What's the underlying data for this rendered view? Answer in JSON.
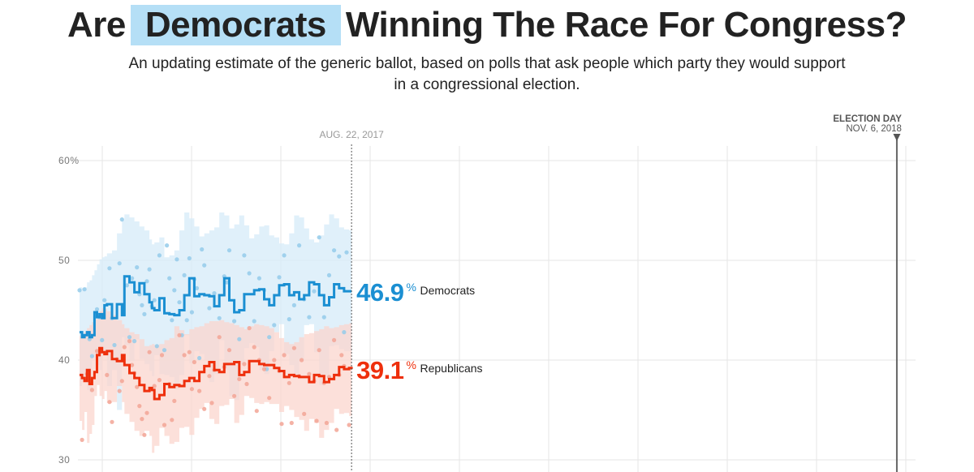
{
  "header": {
    "title_before": "Are",
    "title_highlight": "Democrats",
    "title_after": "Winning The Race For Congress?",
    "subtitle": "An updating estimate of the generic ballot, based on polls that ask people which party they would support in a congressional election."
  },
  "colors": {
    "democrat": "#1b8fd2",
    "democrat_band": "#d6ebf8",
    "democrat_dot": "#94cbea",
    "republican": "#ee2f0c",
    "republican_band": "#fbd6cd",
    "republican_dot": "#f2a595",
    "highlight": "#b5dff6",
    "grid": "#e6e6e6"
  },
  "chart_data": {
    "type": "line",
    "title": "Are Democrats Winning The Race For Congress?",
    "xlabel": "",
    "ylabel": "",
    "ylim": [
      30,
      60
    ],
    "y_ticks": [
      {
        "value": 60,
        "label": "60%"
      },
      {
        "value": 50,
        "label": "50"
      },
      {
        "value": 40,
        "label": "40"
      },
      {
        "value": 30,
        "label": "30"
      }
    ],
    "x_range_days": [
      0,
      670
    ],
    "current_day": 218,
    "election_day": 655,
    "markers": [
      {
        "name": "current",
        "label": "AUG. 22, 2017",
        "day": 218
      },
      {
        "name": "election",
        "label": "ELECTION DAY",
        "sublabel": "NOV. 6, 2018",
        "day": 655
      }
    ],
    "series": [
      {
        "name": "Democrats",
        "label_value": "46.9",
        "label_unit": "%",
        "x": [
          0,
          2,
          4,
          6,
          8,
          10,
          12,
          14,
          16,
          18,
          20,
          22,
          26,
          30,
          34,
          36,
          40,
          44,
          48,
          52,
          56,
          58,
          60,
          64,
          68,
          72,
          76,
          80,
          84,
          88,
          92,
          96,
          100,
          104,
          108,
          112,
          116,
          120,
          124,
          128,
          132,
          136,
          140,
          144,
          148,
          152,
          156,
          160,
          164,
          168,
          172,
          176,
          180,
          184,
          188,
          192,
          196,
          200,
          204,
          208,
          212,
          216,
          218
        ],
        "values": [
          42.8,
          42.3,
          42.5,
          42.8,
          42.3,
          42.5,
          44.8,
          44.3,
          44.6,
          44.2,
          45.5,
          45.6,
          44.2,
          45.6,
          44.5,
          48.4,
          47.8,
          46.8,
          47.7,
          46.6,
          45.8,
          45.2,
          45.0,
          46.2,
          44.7,
          44.6,
          44.5,
          45.0,
          46.5,
          48.2,
          46.4,
          46.6,
          46.5,
          46.4,
          45.4,
          46.5,
          48.2,
          46.0,
          44.8,
          45.0,
          46.6,
          46.6,
          47.0,
          47.1,
          46.1,
          45.5,
          46.5,
          47.5,
          47.6,
          46.5,
          46.8,
          46.1,
          46.5,
          47.8,
          47.6,
          46.5,
          45.5,
          46.3,
          47.6,
          47.2,
          46.9,
          46.9,
          46.9
        ],
        "upper": [
          47.3,
          47.2,
          47.3,
          47.8,
          48.0,
          48.5,
          49.0,
          49.6,
          50.1,
          50.3,
          50.4,
          50.7,
          51.0,
          52.7,
          54.0,
          54.6,
          54.3,
          53.9,
          53.4,
          53.0,
          52.1,
          51.6,
          51.8,
          52.3,
          50.3,
          50.5,
          51.0,
          53.0,
          54.8,
          54.2,
          53.4,
          52.4,
          52.7,
          53.0,
          53.3,
          54.8,
          54.5,
          53.2,
          53.6,
          54.5,
          53.5,
          52.2,
          52.6,
          53.4,
          53.5,
          52.5,
          52.3,
          51.7,
          51.6,
          52.7,
          54.5,
          54.3,
          53.2,
          52.1,
          51.8,
          52.5,
          53.6,
          54.6,
          54.2,
          53.3,
          53.1,
          53.0,
          52.9
        ],
        "lower": [
          38.1,
          37.4,
          37.9,
          38.0,
          37.0,
          36.8,
          40.5,
          39.0,
          39.5,
          39.0,
          40.5,
          40.7,
          37.4,
          39.0,
          35.0,
          42.3,
          41.5,
          39.9,
          42.1,
          40.1,
          39.6,
          38.9,
          38.4,
          40.5,
          38.6,
          38.5,
          38.3,
          37.1,
          38.5,
          42.5,
          39.7,
          40.9,
          40.6,
          40.0,
          37.8,
          38.6,
          42.0,
          39.0,
          36.4,
          36.0,
          39.6,
          41.2,
          41.7,
          41.3,
          39.0,
          38.6,
          40.9,
          42.8,
          43.6,
          40.6,
          39.5,
          38.3,
          39.9,
          43.5,
          43.6,
          40.8,
          37.5,
          38.3,
          41.4,
          41.5,
          41.1,
          40.9,
          40.9
        ],
        "polls": [
          [
            0,
            47.0
          ],
          [
            4,
            47.1
          ],
          [
            8,
            42.1
          ],
          [
            10,
            40.4
          ],
          [
            14,
            45.1
          ],
          [
            16,
            44.3
          ],
          [
            18,
            42.0
          ],
          [
            20,
            46.0
          ],
          [
            24,
            49.2
          ],
          [
            26,
            44.2
          ],
          [
            28,
            41.5
          ],
          [
            32,
            49.7
          ],
          [
            34,
            54.1
          ],
          [
            38,
            47.5
          ],
          [
            40,
            42.3
          ],
          [
            42,
            48.2
          ],
          [
            44,
            41.9
          ],
          [
            46,
            49.3
          ],
          [
            48,
            46.6
          ],
          [
            50,
            45.5
          ],
          [
            52,
            44.6
          ],
          [
            54,
            47.9
          ],
          [
            56,
            49.1
          ],
          [
            58,
            45.4
          ],
          [
            60,
            46.0
          ],
          [
            62,
            41.4
          ],
          [
            64,
            50.5
          ],
          [
            68,
            41.0
          ],
          [
            70,
            51.5
          ],
          [
            72,
            48.2
          ],
          [
            74,
            44.0
          ],
          [
            76,
            47.0
          ],
          [
            78,
            50.1
          ],
          [
            80,
            45.8
          ],
          [
            82,
            42.5
          ],
          [
            84,
            48.5
          ],
          [
            86,
            44.0
          ],
          [
            88,
            50.2
          ],
          [
            90,
            44.8
          ],
          [
            92,
            48.1
          ],
          [
            94,
            47.2
          ],
          [
            96,
            40.2
          ],
          [
            98,
            51.1
          ],
          [
            100,
            49.5
          ],
          [
            104,
            45.2
          ],
          [
            108,
            46.7
          ],
          [
            112,
            44.2
          ],
          [
            116,
            48.4
          ],
          [
            118,
            47.8
          ],
          [
            120,
            51.0
          ],
          [
            124,
            43.9
          ],
          [
            128,
            42.1
          ],
          [
            132,
            50.5
          ],
          [
            136,
            48.7
          ],
          [
            140,
            43.9
          ],
          [
            144,
            48.2
          ],
          [
            148,
            47.0
          ],
          [
            150,
            39.1
          ],
          [
            152,
            42.3
          ],
          [
            156,
            43.5
          ],
          [
            160,
            48.3
          ],
          [
            164,
            50.5
          ],
          [
            168,
            44.1
          ],
          [
            172,
            45.5
          ],
          [
            176,
            51.5
          ],
          [
            180,
            46.1
          ],
          [
            184,
            44.3
          ],
          [
            188,
            46.9
          ],
          [
            192,
            52.3
          ],
          [
            196,
            44.3
          ],
          [
            200,
            48.5
          ],
          [
            204,
            51.0
          ],
          [
            208,
            50.4
          ],
          [
            212,
            42.8
          ],
          [
            214,
            50.8
          ]
        ]
      },
      {
        "name": "Republicans",
        "label_value": "39.1",
        "label_unit": "%",
        "x": [
          0,
          2,
          4,
          6,
          8,
          10,
          12,
          14,
          16,
          18,
          20,
          22,
          26,
          30,
          34,
          36,
          40,
          44,
          48,
          52,
          56,
          58,
          60,
          64,
          68,
          72,
          76,
          80,
          84,
          88,
          92,
          96,
          100,
          104,
          108,
          112,
          116,
          120,
          124,
          128,
          132,
          136,
          140,
          144,
          148,
          152,
          156,
          160,
          164,
          168,
          172,
          176,
          180,
          184,
          188,
          192,
          196,
          200,
          204,
          208,
          212,
          216,
          218
        ],
        "values": [
          38.5,
          38.2,
          37.9,
          39.0,
          37.6,
          38.2,
          38.8,
          40.5,
          41.2,
          40.8,
          40.6,
          40.9,
          40.1,
          39.9,
          40.5,
          39.5,
          38.7,
          38.2,
          37.5,
          36.9,
          37.2,
          37.0,
          36.1,
          36.5,
          37.6,
          37.3,
          37.5,
          37.4,
          37.9,
          38.2,
          37.9,
          38.8,
          39.4,
          39.8,
          39.0,
          38.8,
          39.6,
          39.6,
          39.8,
          38.5,
          38.8,
          39.9,
          39.9,
          39.6,
          39.5,
          39.5,
          39.2,
          38.9,
          38.3,
          38.5,
          38.4,
          38.3,
          38.3,
          37.8,
          38.5,
          38.4,
          37.8,
          38.1,
          38.5,
          39.3,
          39.1,
          39.2,
          39.1
        ],
        "upper": [
          42.4,
          42.5,
          42.8,
          43.2,
          43.5,
          43.8,
          44.1,
          44.6,
          44.9,
          45.2,
          45.1,
          44.9,
          44.5,
          44.0,
          43.6,
          43.2,
          42.8,
          42.6,
          42.1,
          41.4,
          41.5,
          41.6,
          41.5,
          41.6,
          42.0,
          42.2,
          43.4,
          43.0,
          42.6,
          43.1,
          43.3,
          43.4,
          43.7,
          43.9,
          43.9,
          44.0,
          43.8,
          43.7,
          43.5,
          43.3,
          43.1,
          43.4,
          43.6,
          43.5,
          43.4,
          43.2,
          42.8,
          42.2,
          41.8,
          41.6,
          41.8,
          42.3,
          42.6,
          42.7,
          42.9,
          43.1,
          43.4,
          43.2,
          43.3,
          43.5,
          43.6,
          43.7,
          43.8
        ],
        "lower": [
          34.6,
          33.9,
          33.0,
          34.8,
          31.7,
          32.6,
          33.5,
          36.4,
          37.5,
          36.4,
          36.1,
          36.9,
          35.7,
          35.8,
          37.4,
          35.8,
          34.6,
          33.8,
          32.9,
          32.4,
          32.9,
          32.4,
          30.7,
          31.4,
          33.2,
          32.4,
          31.6,
          31.8,
          33.2,
          33.3,
          32.5,
          34.2,
          35.1,
          35.7,
          34.1,
          33.6,
          35.4,
          35.5,
          36.1,
          33.7,
          34.5,
          36.4,
          36.2,
          35.7,
          35.6,
          35.8,
          35.6,
          35.6,
          34.8,
          35.4,
          35.0,
          34.3,
          34.0,
          32.9,
          34.1,
          33.7,
          32.2,
          33.0,
          33.7,
          35.1,
          34.6,
          34.7,
          34.4
        ],
        "polls": [
          [
            2,
            32.0
          ],
          [
            6,
            38.6
          ],
          [
            10,
            37.0
          ],
          [
            14,
            40.9
          ],
          [
            18,
            44.5
          ],
          [
            22,
            38.5
          ],
          [
            24,
            35.8
          ],
          [
            26,
            33.8
          ],
          [
            30,
            40.1
          ],
          [
            32,
            36.9
          ],
          [
            34,
            37.9
          ],
          [
            36,
            41.3
          ],
          [
            40,
            41.9
          ],
          [
            42,
            39.5
          ],
          [
            44,
            38.7
          ],
          [
            46,
            37.3
          ],
          [
            48,
            35.4
          ],
          [
            50,
            34.1
          ],
          [
            52,
            32.5
          ],
          [
            54,
            34.7
          ],
          [
            56,
            40.8
          ],
          [
            60,
            37.4
          ],
          [
            64,
            38.0
          ],
          [
            66,
            40.5
          ],
          [
            68,
            33.5
          ],
          [
            72,
            37.6
          ],
          [
            74,
            34.0
          ],
          [
            76,
            35.9
          ],
          [
            80,
            42.5
          ],
          [
            84,
            40.5
          ],
          [
            88,
            40.8
          ],
          [
            90,
            37.1
          ],
          [
            92,
            39.8
          ],
          [
            96,
            36.9
          ],
          [
            100,
            35.1
          ],
          [
            104,
            38.4
          ],
          [
            106,
            35.7
          ],
          [
            108,
            39.0
          ],
          [
            112,
            42.3
          ],
          [
            116,
            39.3
          ],
          [
            120,
            41.0
          ],
          [
            124,
            36.4
          ],
          [
            128,
            38.1
          ],
          [
            132,
            39.6
          ],
          [
            134,
            37.6
          ],
          [
            136,
            43.2
          ],
          [
            140,
            41.3
          ],
          [
            142,
            34.9
          ],
          [
            144,
            40.0
          ],
          [
            148,
            39.1
          ],
          [
            152,
            36.2
          ],
          [
            156,
            40.0
          ],
          [
            160,
            38.9
          ],
          [
            162,
            33.6
          ],
          [
            164,
            40.5
          ],
          [
            168,
            37.7
          ],
          [
            170,
            33.7
          ],
          [
            172,
            41.2
          ],
          [
            176,
            38.4
          ],
          [
            178,
            40.0
          ],
          [
            180,
            34.6
          ],
          [
            184,
            38.6
          ],
          [
            188,
            37.9
          ],
          [
            190,
            33.9
          ],
          [
            192,
            41.0
          ],
          [
            196,
            37.7
          ],
          [
            198,
            33.7
          ],
          [
            200,
            38.3
          ],
          [
            204,
            42.0
          ],
          [
            206,
            33.0
          ],
          [
            208,
            38.5
          ],
          [
            210,
            40.5
          ],
          [
            212,
            39.4
          ],
          [
            216,
            33.5
          ]
        ]
      }
    ]
  }
}
